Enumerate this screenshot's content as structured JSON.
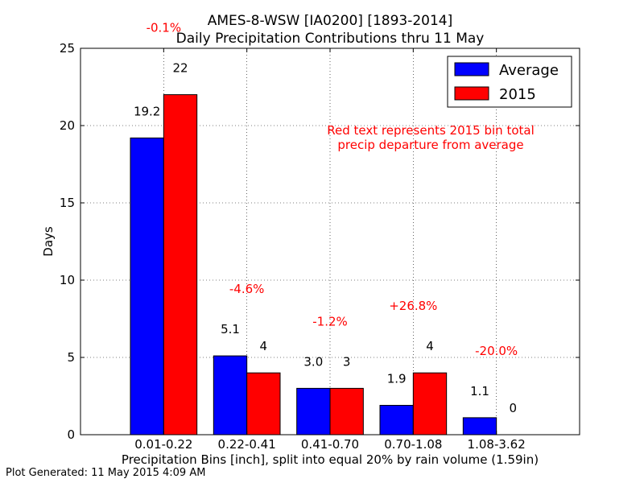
{
  "chart_data": {
    "type": "bar",
    "title_line1": "AMES-8-WSW [IA0200] [1893-2014]",
    "title_line2": "Daily Precipitation Contributions thru 11 May",
    "xlabel": "Precipitation Bins [inch], split into equal 20% by rain volume (1.59in)",
    "ylabel": "Days",
    "ylim": [
      0,
      25
    ],
    "yticks": [
      "0",
      "5",
      "10",
      "15",
      "20",
      "25"
    ],
    "categories": [
      "0.01-0.22",
      "0.22-0.41",
      "0.41-0.70",
      "0.70-1.08",
      "1.08-3.62"
    ],
    "series": [
      {
        "name": "Average",
        "color": "#0000ff",
        "values": [
          19.2,
          5.1,
          3.0,
          1.9,
          1.1
        ],
        "labels": [
          "19.2",
          "5.1",
          "3.0",
          "1.9",
          "1.1"
        ]
      },
      {
        "name": "2015",
        "color": "#ff0000",
        "values": [
          22,
          4,
          3,
          4,
          0
        ],
        "labels": [
          "22",
          "4",
          "3",
          "4",
          "0"
        ]
      }
    ],
    "departures": [
      "-0.1%",
      "-4.6%",
      "-1.2%",
      "+26.8%",
      "-20.0%"
    ],
    "departure_color": "#ff0000",
    "note_line1": "Red text represents 2015 bin total",
    "note_line2": "precip departure from average",
    "legend_position": "top-right",
    "grid": true
  },
  "footer": "Plot Generated: 11 May 2015 4:09 AM"
}
